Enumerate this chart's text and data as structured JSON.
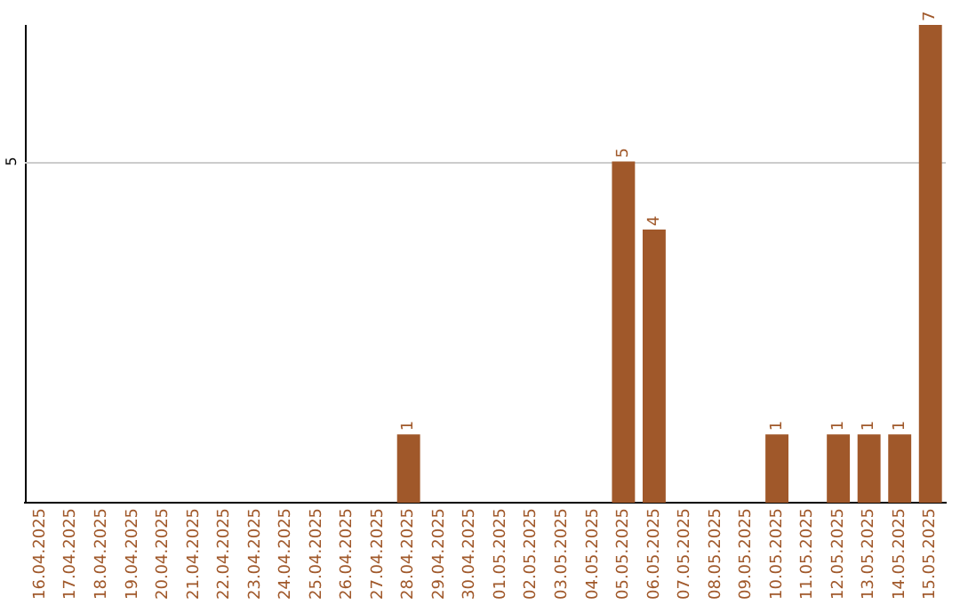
{
  "chart_data": {
    "type": "bar",
    "categories": [
      "16.04.2025",
      "17.04.2025",
      "18.04.2025",
      "19.04.2025",
      "20.04.2025",
      "21.04.2025",
      "22.04.2025",
      "23.04.2025",
      "24.04.2025",
      "25.04.2025",
      "26.04.2025",
      "27.04.2025",
      "28.04.2025",
      "29.04.2025",
      "30.04.2025",
      "01.05.2025",
      "02.05.2025",
      "03.05.2025",
      "04.05.2025",
      "05.05.2025",
      "06.05.2025",
      "07.05.2025",
      "08.05.2025",
      "09.05.2025",
      "10.05.2025",
      "11.05.2025",
      "12.05.2025",
      "13.05.2025",
      "14.05.2025",
      "15.05.2025"
    ],
    "values": [
      null,
      null,
      null,
      null,
      null,
      null,
      null,
      null,
      null,
      null,
      null,
      null,
      1,
      null,
      null,
      null,
      null,
      null,
      null,
      5,
      4,
      null,
      null,
      null,
      1,
      null,
      1,
      1,
      1,
      7
    ],
    "color": "#a0582a",
    "data_labels": true,
    "ref_lines": [
      {
        "axis": "y",
        "value": 5,
        "label": "5",
        "color": "#cccccc"
      }
    ]
  }
}
